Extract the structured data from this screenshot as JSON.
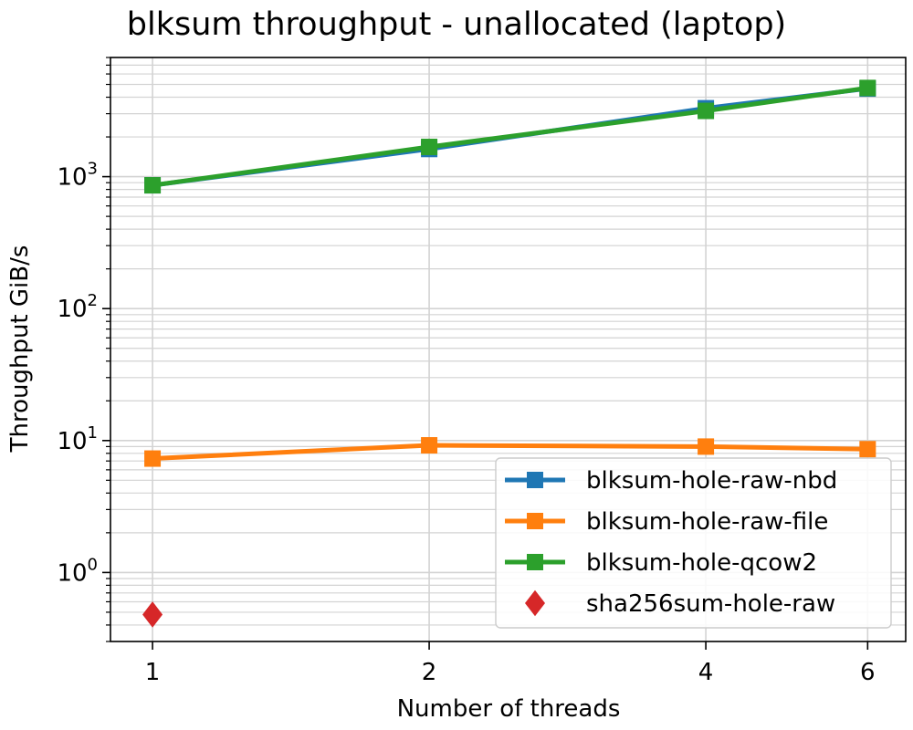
{
  "chart_data": {
    "type": "line",
    "title": "blksum throughput - unallocated (laptop)",
    "xlabel": "Number of threads",
    "ylabel": "Throughput GiB/s",
    "y_scale": "log",
    "x_scale": "log2",
    "ylim": [
      0.3,
      8000
    ],
    "xlim": [
      0.9,
      6.6
    ],
    "x_ticks": [
      1,
      2,
      4,
      6
    ],
    "y_ticks": [
      {
        "value": 1,
        "base": "10",
        "exp": "0"
      },
      {
        "value": 10,
        "base": "10",
        "exp": "1"
      },
      {
        "value": 100,
        "base": "10",
        "exp": "2"
      },
      {
        "value": 1000,
        "base": "10",
        "exp": "3"
      }
    ],
    "grid": "major and minor",
    "legend_position": "lower right",
    "series": [
      {
        "name": "blksum-hole-raw-nbd",
        "color": "#1f77b4",
        "marker": "square",
        "line": true,
        "x": [
          1,
          2,
          4,
          6
        ],
        "y": [
          860,
          1620,
          3300,
          4650
        ]
      },
      {
        "name": "blksum-hole-raw-file",
        "color": "#ff7f0e",
        "marker": "square",
        "line": true,
        "x": [
          1,
          2,
          4,
          6
        ],
        "y": [
          7.3,
          9.2,
          9.0,
          8.6
        ]
      },
      {
        "name": "blksum-hole-qcow2",
        "color": "#2ca02c",
        "marker": "square",
        "line": true,
        "x": [
          1,
          2,
          4,
          6
        ],
        "y": [
          860,
          1680,
          3150,
          4700
        ]
      },
      {
        "name": "sha256sum-hole-raw",
        "color": "#d62728",
        "marker": "diamond",
        "line": false,
        "x": [
          1
        ],
        "y": [
          0.48
        ]
      }
    ]
  }
}
